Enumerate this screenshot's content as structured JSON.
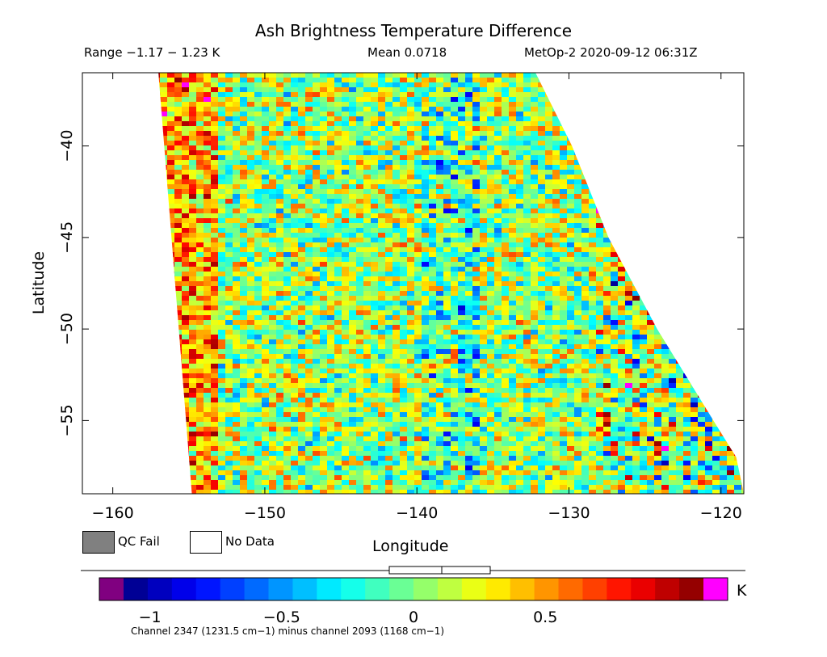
{
  "chart_data": {
    "type": "heatmap",
    "title": "Ash Brightness Temperature Difference",
    "info": {
      "range": "Range −1.17 − 1.23 K",
      "mean": "Mean 0.0718",
      "satellite": "MetOp-2 2020-09-12 06:31Z"
    },
    "xlabel": "Longitude",
    "ylabel": "Latitude",
    "xlim": [
      -162,
      -118.5
    ],
    "ylim": [
      -59,
      -36
    ],
    "xticks": [
      -160,
      -150,
      -140,
      -130,
      -120
    ],
    "xtick_labels": [
      "−160",
      "−150",
      "−140",
      "−130",
      "−120"
    ],
    "yticks": [
      -40,
      -45,
      -50,
      -55
    ],
    "ytick_labels": [
      "−40",
      "−45",
      "−50",
      "−55"
    ],
    "swath": {
      "west_edge_lon": [
        [
          -36,
          -157
        ],
        [
          -59,
          -154.8
        ]
      ],
      "east_edge_lon": [
        [
          -36,
          -132.2
        ],
        [
          -40,
          -129.8
        ],
        [
          -45,
          -127.4
        ],
        [
          -50,
          -124.2
        ],
        [
          -55,
          -120.5
        ],
        [
          -57,
          -119
        ]
      ]
    },
    "value_range": [
      -1.17,
      1.23
    ],
    "mean": 0.0718,
    "colorbar": {
      "unit": "K",
      "vmin": -1.1,
      "vmax": 1.1,
      "ticks": [
        -1,
        -0.5,
        0,
        0.5
      ],
      "tick_labels": [
        "−1",
        "−0.5",
        "0",
        "0.5"
      ],
      "under_color": "#800080",
      "over_color": "#ff00ff",
      "caption": "Channel 2347 (1231.5 cm−1) minus channel 2093 (1168 cm−1)"
    },
    "legend": [
      {
        "label": "QC Fail",
        "color": "#808080"
      },
      {
        "label": "No Data",
        "color": "#ffffff"
      }
    ]
  }
}
